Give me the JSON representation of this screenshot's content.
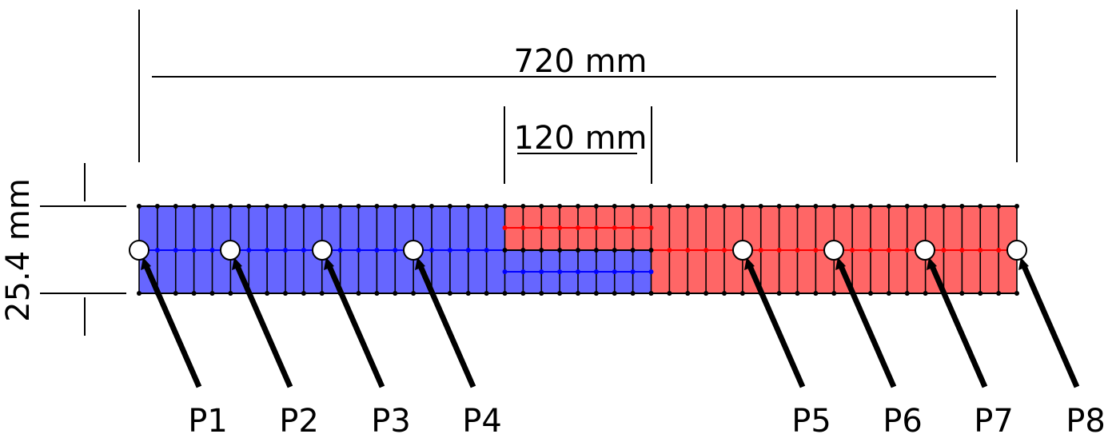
{
  "dimensions": {
    "total_length": "720 mm",
    "overlap_length": "120 mm",
    "height": "25.4 mm"
  },
  "points": [
    {
      "label": "P1"
    },
    {
      "label": "P2"
    },
    {
      "label": "P3"
    },
    {
      "label": "P4"
    },
    {
      "label": "P5"
    },
    {
      "label": "P6"
    },
    {
      "label": "P7"
    },
    {
      "label": "P8"
    }
  ],
  "colors": {
    "left_part": "#6666ff",
    "right_part": "#ff6666",
    "left_seam": "#0000ff",
    "right_seam": "#ff0000",
    "lines": "#000000"
  }
}
